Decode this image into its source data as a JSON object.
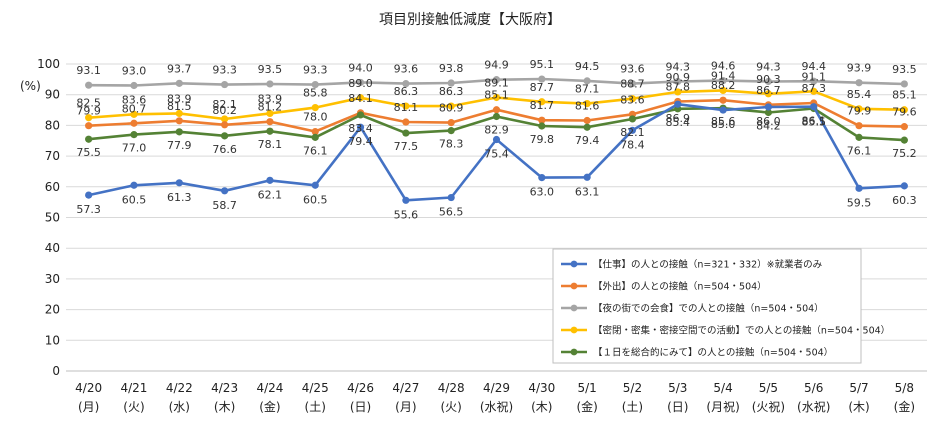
{
  "chart_data": {
    "type": "line",
    "title": "項目別接触低減度【大阪府】",
    "ylabel": "(%)",
    "ylim": [
      0,
      100
    ],
    "yticks": [
      0,
      10,
      20,
      30,
      40,
      50,
      60,
      70,
      80,
      90,
      100
    ],
    "grid": true,
    "legend_position": "right-middle",
    "categories": [
      "4/20",
      "4/21",
      "4/22",
      "4/23",
      "4/24",
      "4/25",
      "4/26",
      "4/27",
      "4/28",
      "4/29",
      "4/30",
      "5/1",
      "5/2",
      "5/3",
      "5/4",
      "5/5",
      "5/6",
      "5/7",
      "5/8"
    ],
    "weekdays": [
      "(月)",
      "(火)",
      "(水)",
      "(木)",
      "(金)",
      "(土)",
      "(日)",
      "(月)",
      "(火)",
      "(水祝)",
      "(木)",
      "(金)",
      "(土)",
      "(日)",
      "(月祝)",
      "(火祝)",
      "(水祝)",
      "(木)",
      "(金)"
    ],
    "series": [
      {
        "name": "【仕事】の人との接触（n=321・332）※就業者のみ",
        "color": "#4472C4",
        "values": [
          57.3,
          60.5,
          61.3,
          58.7,
          62.1,
          60.5,
          79.4,
          55.6,
          56.5,
          75.4,
          63.0,
          63.1,
          78.4,
          86.9,
          85.0,
          86.0,
          86.1,
          59.5,
          60.3
        ]
      },
      {
        "name": "【外出】の人との接触（n=504・504）",
        "color": "#ED7D31",
        "values": [
          79.9,
          80.7,
          81.5,
          80.2,
          81.2,
          78.0,
          84.1,
          81.1,
          80.9,
          85.1,
          81.7,
          81.6,
          83.6,
          87.8,
          88.2,
          86.7,
          87.3,
          79.9,
          79.6
        ]
      },
      {
        "name": "【夜の街での会食】での人との接触（n=504・504）",
        "color": "#A5A5A5",
        "values": [
          93.1,
          93.0,
          93.7,
          93.3,
          93.5,
          93.3,
          94.0,
          93.6,
          93.8,
          94.9,
          95.1,
          94.5,
          93.6,
          94.3,
          94.6,
          94.3,
          94.4,
          93.9,
          93.5
        ]
      },
      {
        "name": "【密閉・密集・密接空間での活動】での人との接触（n=504・504）",
        "color": "#FFC000",
        "values": [
          82.5,
          83.6,
          83.9,
          82.1,
          83.9,
          85.8,
          89.0,
          86.3,
          86.3,
          89.1,
          87.7,
          87.1,
          88.7,
          90.9,
          91.4,
          90.3,
          91.1,
          85.4,
          85.1
        ]
      },
      {
        "name": "【１日を総合的にみて】の人との接触（n=504・504）",
        "color": "#548235",
        "values": [
          75.5,
          77.0,
          77.9,
          76.6,
          78.1,
          76.1,
          83.4,
          77.5,
          78.3,
          82.9,
          79.8,
          79.4,
          82.1,
          85.4,
          85.6,
          84.2,
          85.5,
          76.1,
          75.2
        ]
      }
    ]
  }
}
